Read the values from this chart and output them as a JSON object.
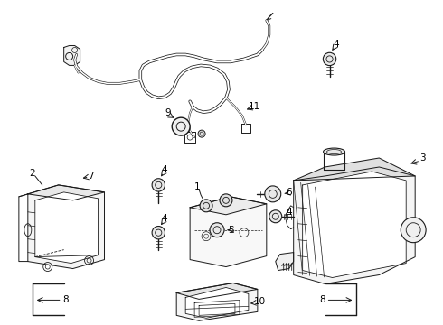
{
  "background": "#ffffff",
  "line_color": "#1a1a1a",
  "fig_width": 4.9,
  "fig_height": 3.6,
  "dpi": 100,
  "lw": 0.7,
  "label_fontsize": 7.5
}
